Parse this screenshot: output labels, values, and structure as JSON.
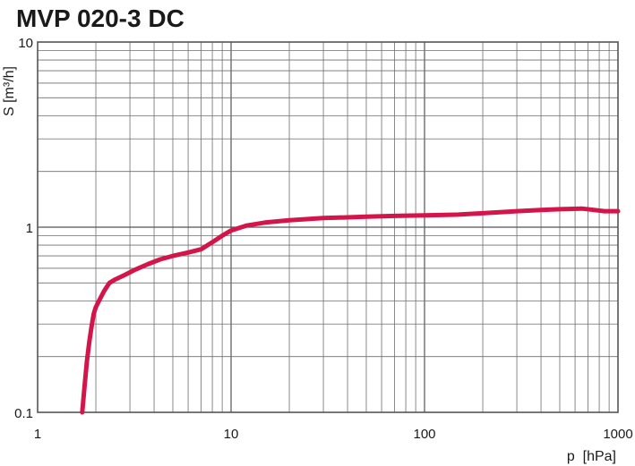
{
  "chart_data": {
    "type": "line",
    "title": "MVP 020-3 DC",
    "xlabel": "p  [hPa]",
    "ylabel": "S [m³/h]",
    "xscale": "log",
    "yscale": "log",
    "xlim": [
      1,
      1000
    ],
    "ylim": [
      0.1,
      10
    ],
    "grid": true,
    "x_ticks": [
      "1",
      "10",
      "100",
      "1000"
    ],
    "y_ticks": [
      "0.1",
      "1",
      "10"
    ],
    "series_color": "#d4154a",
    "series": [
      {
        "x": [
          1.7,
          1.75,
          1.8,
          1.85,
          1.9,
          1.95,
          2.0,
          2.1,
          2.2,
          2.35,
          2.5,
          2.8,
          3.2,
          3.7,
          4.3,
          5.0,
          6.0,
          7.0,
          8.0,
          9.0,
          10,
          12,
          15,
          20,
          30,
          40,
          50,
          70,
          100,
          150,
          200,
          300,
          400,
          500,
          650,
          750,
          850,
          1000
        ],
        "y": [
          0.1,
          0.14,
          0.19,
          0.24,
          0.29,
          0.34,
          0.37,
          0.41,
          0.45,
          0.5,
          0.52,
          0.55,
          0.59,
          0.63,
          0.67,
          0.7,
          0.73,
          0.76,
          0.83,
          0.9,
          0.96,
          1.02,
          1.06,
          1.09,
          1.12,
          1.13,
          1.14,
          1.15,
          1.16,
          1.17,
          1.19,
          1.22,
          1.24,
          1.25,
          1.26,
          1.24,
          1.22,
          1.22
        ]
      }
    ]
  }
}
